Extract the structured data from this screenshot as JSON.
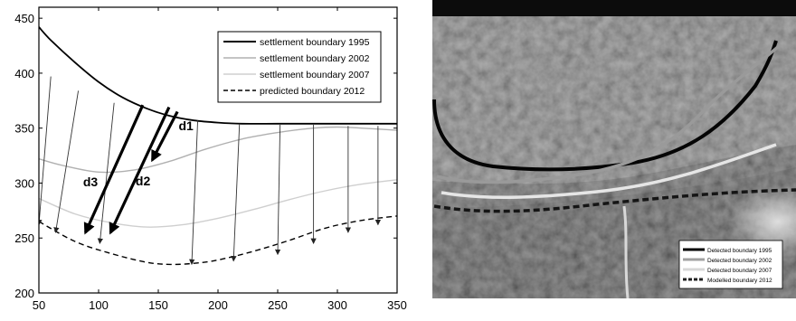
{
  "chart_data": {
    "type": "line",
    "title": "",
    "xlabel": "",
    "ylabel": "",
    "xlim": [
      50,
      350
    ],
    "ylim": [
      200,
      460
    ],
    "x_ticks": [
      "50",
      "100",
      "150",
      "200",
      "250",
      "300",
      "350"
    ],
    "y_ticks": [
      "200",
      "250",
      "300",
      "350",
      "400",
      "450"
    ],
    "grid": false,
    "legend_position": "top-right",
    "series": [
      {
        "name": "settlement boundary 1995",
        "style": "solid",
        "color": "#000000",
        "x": [
          50,
          60,
          80,
          100,
          120,
          140,
          160,
          180,
          200,
          220,
          250,
          280,
          310,
          350
        ],
        "y": [
          442,
          430,
          410,
          392,
          378,
          368,
          361,
          357,
          355,
          354,
          354,
          354,
          354,
          354
        ]
      },
      {
        "name": "settlement boundary 2002",
        "style": "solid",
        "color": "#b0b0b0",
        "x": [
          50,
          70,
          100,
          130,
          160,
          190,
          220,
          250,
          280,
          300,
          320,
          350
        ],
        "y": [
          322,
          316,
          310,
          312,
          320,
          331,
          340,
          346,
          350,
          351,
          350,
          348
        ]
      },
      {
        "name": "settlement boundary 2007",
        "style": "solid",
        "color": "#cfcfcf",
        "x": [
          50,
          80,
          110,
          140,
          170,
          200,
          230,
          260,
          290,
          320,
          350
        ],
        "y": [
          286,
          272,
          264,
          260,
          262,
          268,
          276,
          285,
          293,
          299,
          303
        ]
      },
      {
        "name": "predicted boundary 2012",
        "style": "dashed",
        "color": "#000000",
        "x": [
          50,
          80,
          110,
          140,
          160,
          180,
          200,
          230,
          260,
          290,
          320,
          350
        ],
        "y": [
          265,
          247,
          236,
          228,
          226,
          227,
          230,
          238,
          248,
          259,
          266,
          270
        ]
      }
    ],
    "arrows": [
      {
        "from": [
          60,
          397
        ],
        "to": [
          50,
          262
        ],
        "weight": "thin"
      },
      {
        "from": [
          83,
          384
        ],
        "to": [
          64,
          255
        ],
        "weight": "thin"
      },
      {
        "from": [
          113,
          373
        ],
        "to": [
          101,
          245
        ],
        "weight": "thin"
      },
      {
        "from": [
          183,
          357
        ],
        "to": [
          178,
          226
        ],
        "weight": "thin"
      },
      {
        "from": [
          218,
          354
        ],
        "to": [
          213,
          229
        ],
        "weight": "thin"
      },
      {
        "from": [
          252,
          353
        ],
        "to": [
          250,
          235
        ],
        "weight": "thin"
      },
      {
        "from": [
          280,
          353
        ],
        "to": [
          280,
          245
        ],
        "weight": "thin"
      },
      {
        "from": [
          309,
          352
        ],
        "to": [
          309,
          255
        ],
        "weight": "thin"
      },
      {
        "from": [
          334,
          352
        ],
        "to": [
          334,
          262
        ],
        "weight": "thin"
      },
      {
        "from": [
          137,
          371
        ],
        "to": [
          89,
          255
        ],
        "weight": "thick"
      },
      {
        "from": [
          159,
          369
        ],
        "to": [
          110,
          255
        ],
        "weight": "thick"
      },
      {
        "from": [
          166,
          365
        ],
        "to": [
          145,
          321
        ],
        "weight": "thick"
      }
    ],
    "annotations": [
      {
        "text": "d1",
        "x": 167,
        "y": 348
      },
      {
        "text": "d2",
        "x": 131,
        "y": 298
      },
      {
        "text": "d3",
        "x": 87,
        "y": 297
      }
    ]
  },
  "photo": {
    "legend": [
      {
        "label": "Detected boundary 1995",
        "color": "#000000",
        "dashed": false
      },
      {
        "label": "Detected boundary 2002",
        "color": "#a0a0a0",
        "dashed": false
      },
      {
        "label": "Detected boundary 2007",
        "color": "#d8d8d8",
        "dashed": false
      },
      {
        "label": "Modelled boundary 2012",
        "color": "#202020",
        "dashed": true
      }
    ]
  }
}
